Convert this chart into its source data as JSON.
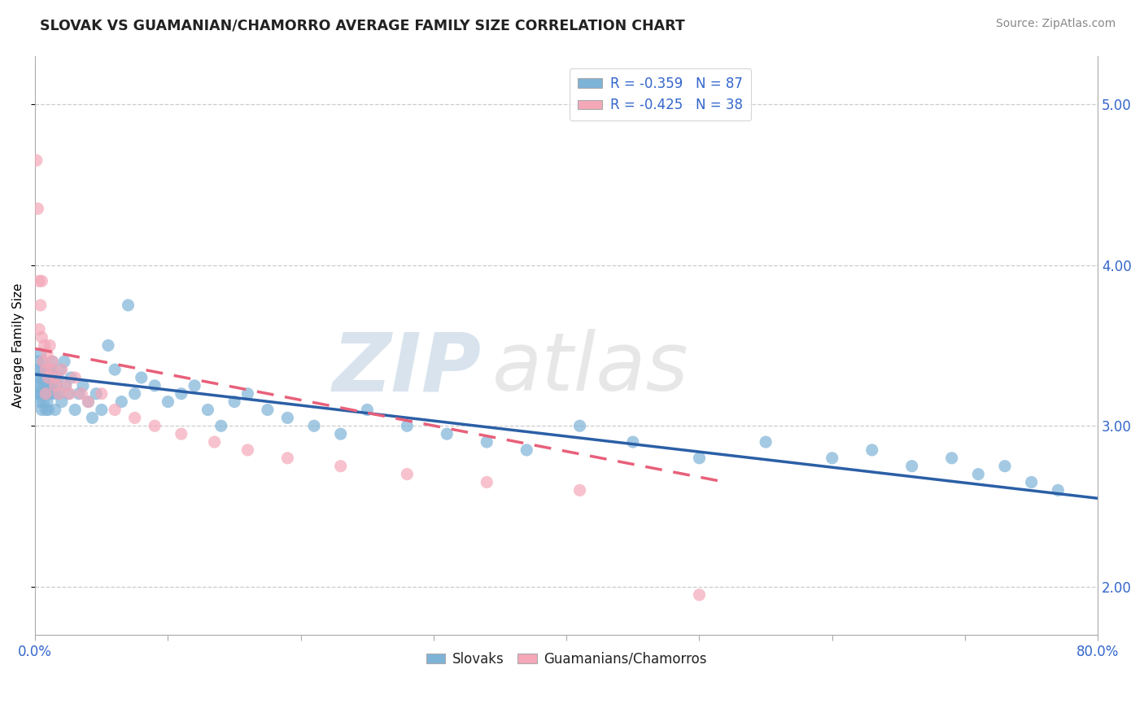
{
  "title": "SLOVAK VS GUAMANIAN/CHAMORRO AVERAGE FAMILY SIZE CORRELATION CHART",
  "source": "Source: ZipAtlas.com",
  "ylabel": "Average Family Size",
  "right_yticks": [
    2.0,
    3.0,
    4.0,
    5.0
  ],
  "legend_blue_label": "R = -0.359   N = 87",
  "legend_pink_label": "R = -0.425   N = 38",
  "bottom_legend_blue": "Slovaks",
  "bottom_legend_pink": "Guamanians/Chamorros",
  "blue_color": "#7EB3D8",
  "pink_color": "#F4A8B8",
  "blue_line_color": "#2B5FA6",
  "pink_line_color": "#E8607A",
  "watermark_zip": "ZIP",
  "watermark_atlas": "atlas",
  "xlim": [
    0.0,
    0.8
  ],
  "ylim": [
    1.7,
    5.3
  ],
  "blue_scatter_x": [
    0.001,
    0.002,
    0.002,
    0.003,
    0.003,
    0.003,
    0.004,
    0.004,
    0.004,
    0.005,
    0.005,
    0.005,
    0.005,
    0.006,
    0.006,
    0.006,
    0.007,
    0.007,
    0.007,
    0.008,
    0.008,
    0.008,
    0.009,
    0.009,
    0.01,
    0.01,
    0.01,
    0.011,
    0.011,
    0.012,
    0.012,
    0.013,
    0.013,
    0.014,
    0.015,
    0.015,
    0.016,
    0.017,
    0.018,
    0.019,
    0.02,
    0.022,
    0.023,
    0.025,
    0.027,
    0.03,
    0.033,
    0.036,
    0.04,
    0.043,
    0.046,
    0.05,
    0.055,
    0.06,
    0.065,
    0.07,
    0.075,
    0.08,
    0.09,
    0.1,
    0.11,
    0.12,
    0.13,
    0.14,
    0.15,
    0.16,
    0.175,
    0.19,
    0.21,
    0.23,
    0.25,
    0.28,
    0.31,
    0.34,
    0.37,
    0.41,
    0.45,
    0.5,
    0.55,
    0.6,
    0.63,
    0.66,
    0.69,
    0.71,
    0.73,
    0.75,
    0.77
  ],
  "blue_scatter_y": [
    3.3,
    3.2,
    3.4,
    3.15,
    3.25,
    3.35,
    3.2,
    3.3,
    3.45,
    3.1,
    3.25,
    3.35,
    3.2,
    3.15,
    3.3,
    3.4,
    3.2,
    3.25,
    3.35,
    3.1,
    3.2,
    3.3,
    3.15,
    3.25,
    3.2,
    3.35,
    3.1,
    3.25,
    3.3,
    3.2,
    3.35,
    3.25,
    3.4,
    3.3,
    3.2,
    3.1,
    3.25,
    3.3,
    3.2,
    3.35,
    3.15,
    3.4,
    3.25,
    3.2,
    3.3,
    3.1,
    3.2,
    3.25,
    3.15,
    3.05,
    3.2,
    3.1,
    3.5,
    3.35,
    3.15,
    3.75,
    3.2,
    3.3,
    3.25,
    3.15,
    3.2,
    3.25,
    3.1,
    3.0,
    3.15,
    3.2,
    3.1,
    3.05,
    3.0,
    2.95,
    3.1,
    3.0,
    2.95,
    2.9,
    2.85,
    3.0,
    2.9,
    2.8,
    2.9,
    2.8,
    2.85,
    2.75,
    2.8,
    2.7,
    2.75,
    2.65,
    2.6
  ],
  "pink_scatter_x": [
    0.001,
    0.002,
    0.003,
    0.003,
    0.004,
    0.005,
    0.005,
    0.006,
    0.007,
    0.008,
    0.008,
    0.009,
    0.01,
    0.011,
    0.012,
    0.013,
    0.015,
    0.016,
    0.018,
    0.02,
    0.023,
    0.026,
    0.03,
    0.035,
    0.04,
    0.05,
    0.06,
    0.075,
    0.09,
    0.11,
    0.135,
    0.16,
    0.19,
    0.23,
    0.28,
    0.34,
    0.41,
    0.5
  ],
  "pink_scatter_y": [
    4.65,
    4.35,
    3.9,
    3.6,
    3.75,
    3.55,
    3.9,
    3.4,
    3.5,
    3.35,
    3.2,
    3.45,
    3.3,
    3.5,
    3.35,
    3.4,
    3.25,
    3.3,
    3.2,
    3.35,
    3.25,
    3.2,
    3.3,
    3.2,
    3.15,
    3.2,
    3.1,
    3.05,
    3.0,
    2.95,
    2.9,
    2.85,
    2.8,
    2.75,
    2.7,
    2.65,
    2.6,
    1.95
  ],
  "blue_trend_x": [
    0.0,
    0.8
  ],
  "blue_trend_y": [
    3.32,
    2.55
  ],
  "pink_trend_x": [
    0.0,
    0.52
  ],
  "pink_trend_y": [
    3.48,
    2.65
  ]
}
